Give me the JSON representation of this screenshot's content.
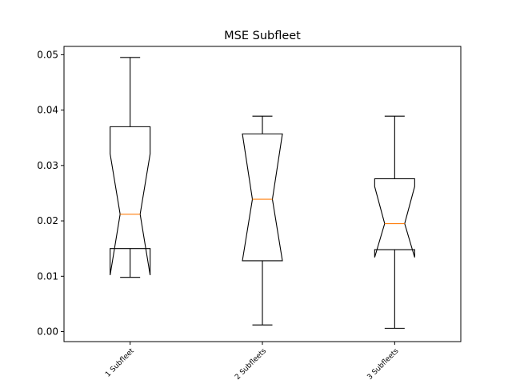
{
  "chart_data": {
    "type": "box",
    "title": "MSE Subfleet",
    "xlabel": "",
    "ylabel": "",
    "ylim": [
      -0.0018,
      0.0515
    ],
    "yticks": [
      0.0,
      0.01,
      0.02,
      0.03,
      0.04,
      0.05
    ],
    "ytick_labels": [
      "0.00",
      "0.01",
      "0.02",
      "0.03",
      "0.04",
      "0.05"
    ],
    "categories": [
      "1 Subfleet",
      "2 Subfleets",
      "3 Subfleets"
    ],
    "notched": true,
    "grid": false,
    "colors": {
      "box": "#000000",
      "median": "#ff7f0e",
      "axes": "#000000",
      "background": "#ffffff"
    },
    "boxes": [
      {
        "label": "1 Subfleet",
        "whisker_low": 0.0098,
        "q1": 0.015,
        "median": 0.0212,
        "q3": 0.037,
        "whisker_high": 0.0495,
        "notch_low": 0.0102,
        "notch_high": 0.0321
      },
      {
        "label": "2 Subfleets",
        "whisker_low": 0.0012,
        "q1": 0.0128,
        "median": 0.0239,
        "q3": 0.0357,
        "whisker_high": 0.0389,
        "notch_low": 0.0128,
        "notch_high": 0.0357
      },
      {
        "label": "3 Subfleets",
        "whisker_low": 0.0006,
        "q1": 0.0148,
        "median": 0.0195,
        "q3": 0.0276,
        "whisker_high": 0.0389,
        "notch_low": 0.0134,
        "notch_high": 0.0262
      }
    ]
  }
}
